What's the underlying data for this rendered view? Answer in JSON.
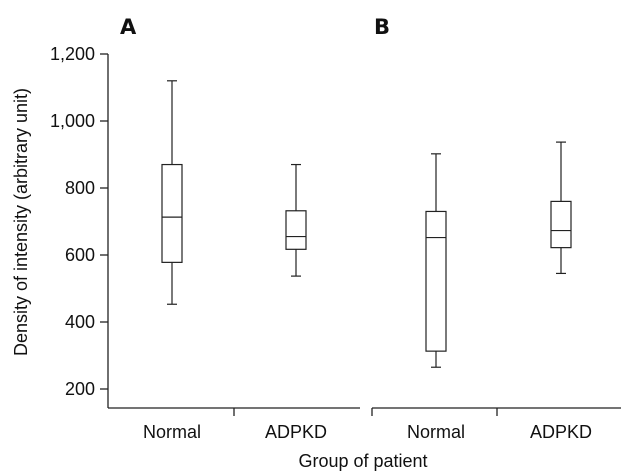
{
  "chart_data": {
    "type": "box",
    "ylabel": "Density of intensity (arbitrary unit)",
    "xlabel": "Group of patient",
    "ylim": [
      200,
      1200
    ],
    "yticks": [
      200,
      400,
      600,
      800,
      1000,
      1200
    ],
    "ytick_labels": [
      "200",
      "400",
      "600",
      "800",
      "1,000",
      "1,200"
    ],
    "grid": false,
    "panels": [
      {
        "label": "A",
        "categories": [
          "Normal",
          "ADPKD"
        ],
        "boxes": [
          {
            "category": "Normal",
            "min": 453,
            "q1": 578,
            "median": 713,
            "q3": 870,
            "max": 1120
          },
          {
            "category": "ADPKD",
            "min": 537,
            "q1": 617,
            "median": 655,
            "q3": 732,
            "max": 870
          }
        ]
      },
      {
        "label": "B",
        "categories": [
          "Normal",
          "ADPKD"
        ],
        "boxes": [
          {
            "category": "Normal",
            "min": 265,
            "q1": 313,
            "median": 652,
            "q3": 730,
            "max": 902
          },
          {
            "category": "ADPKD",
            "min": 545,
            "q1": 622,
            "median": 673,
            "q3": 760,
            "max": 937
          }
        ]
      }
    ]
  }
}
